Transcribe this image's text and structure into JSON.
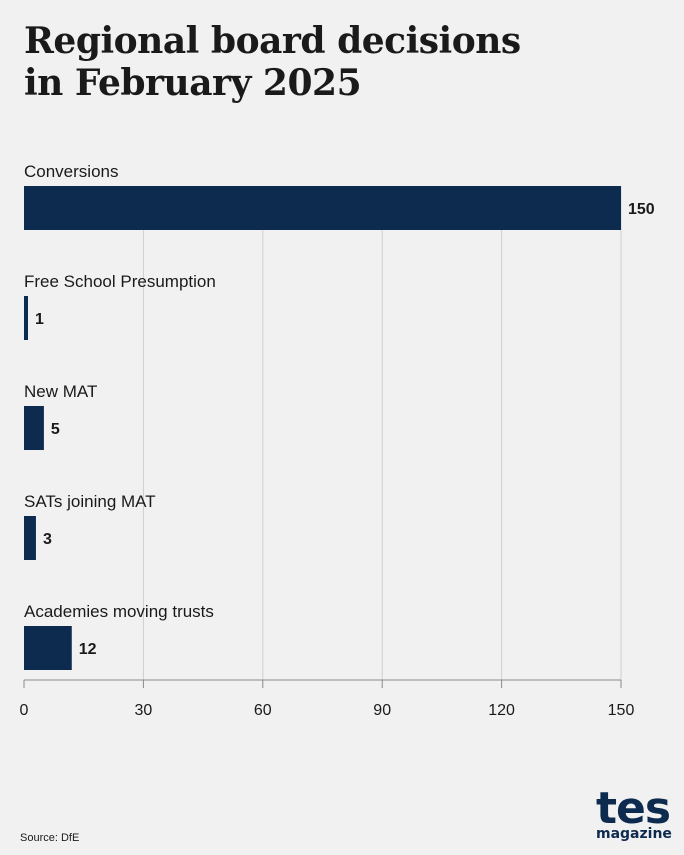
{
  "header": {
    "title_line1": "Regional board decisions",
    "title_line2": "in February 2025"
  },
  "chart_data": {
    "type": "bar",
    "orientation": "horizontal",
    "categories": [
      "Conversions",
      "Free School Presumption",
      "New MAT",
      "SATs joining MAT",
      "Academies moving trusts"
    ],
    "values": [
      150,
      1,
      5,
      3,
      12
    ],
    "xlim": [
      0,
      150
    ],
    "xticks": [
      0,
      30,
      60,
      90,
      120,
      150
    ],
    "grid": "vertical",
    "legend": "none",
    "bar_color": "#0d2a4f"
  },
  "footer": {
    "source": "Source: DfE",
    "logo_main": "tes",
    "logo_sub": "magazine"
  }
}
